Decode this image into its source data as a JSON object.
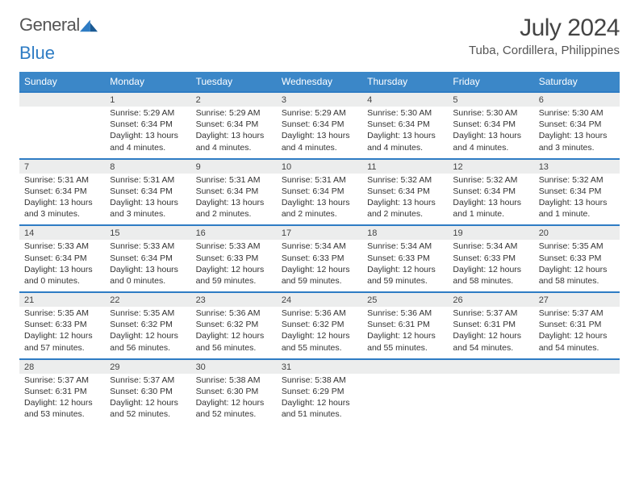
{
  "logo": {
    "part1": "General",
    "part2": "Blue"
  },
  "title": {
    "month": "July 2024",
    "location": "Tuba, Cordillera, Philippines"
  },
  "colors": {
    "header_bg": "#3b87c8",
    "dayrow_bg": "#eceded",
    "row_border": "#2e7cc4",
    "logo_blue": "#2e7cc4"
  },
  "weekdays": [
    "Sunday",
    "Monday",
    "Tuesday",
    "Wednesday",
    "Thursday",
    "Friday",
    "Saturday"
  ],
  "weeks": [
    [
      {
        "day": "",
        "lines": []
      },
      {
        "day": "1",
        "lines": [
          "Sunrise: 5:29 AM",
          "Sunset: 6:34 PM",
          "Daylight: 13 hours and 4 minutes."
        ]
      },
      {
        "day": "2",
        "lines": [
          "Sunrise: 5:29 AM",
          "Sunset: 6:34 PM",
          "Daylight: 13 hours and 4 minutes."
        ]
      },
      {
        "day": "3",
        "lines": [
          "Sunrise: 5:29 AM",
          "Sunset: 6:34 PM",
          "Daylight: 13 hours and 4 minutes."
        ]
      },
      {
        "day": "4",
        "lines": [
          "Sunrise: 5:30 AM",
          "Sunset: 6:34 PM",
          "Daylight: 13 hours and 4 minutes."
        ]
      },
      {
        "day": "5",
        "lines": [
          "Sunrise: 5:30 AM",
          "Sunset: 6:34 PM",
          "Daylight: 13 hours and 4 minutes."
        ]
      },
      {
        "day": "6",
        "lines": [
          "Sunrise: 5:30 AM",
          "Sunset: 6:34 PM",
          "Daylight: 13 hours and 3 minutes."
        ]
      }
    ],
    [
      {
        "day": "7",
        "lines": [
          "Sunrise: 5:31 AM",
          "Sunset: 6:34 PM",
          "Daylight: 13 hours and 3 minutes."
        ]
      },
      {
        "day": "8",
        "lines": [
          "Sunrise: 5:31 AM",
          "Sunset: 6:34 PM",
          "Daylight: 13 hours and 3 minutes."
        ]
      },
      {
        "day": "9",
        "lines": [
          "Sunrise: 5:31 AM",
          "Sunset: 6:34 PM",
          "Daylight: 13 hours and 2 minutes."
        ]
      },
      {
        "day": "10",
        "lines": [
          "Sunrise: 5:31 AM",
          "Sunset: 6:34 PM",
          "Daylight: 13 hours and 2 minutes."
        ]
      },
      {
        "day": "11",
        "lines": [
          "Sunrise: 5:32 AM",
          "Sunset: 6:34 PM",
          "Daylight: 13 hours and 2 minutes."
        ]
      },
      {
        "day": "12",
        "lines": [
          "Sunrise: 5:32 AM",
          "Sunset: 6:34 PM",
          "Daylight: 13 hours and 1 minute."
        ]
      },
      {
        "day": "13",
        "lines": [
          "Sunrise: 5:32 AM",
          "Sunset: 6:34 PM",
          "Daylight: 13 hours and 1 minute."
        ]
      }
    ],
    [
      {
        "day": "14",
        "lines": [
          "Sunrise: 5:33 AM",
          "Sunset: 6:34 PM",
          "Daylight: 13 hours and 0 minutes."
        ]
      },
      {
        "day": "15",
        "lines": [
          "Sunrise: 5:33 AM",
          "Sunset: 6:34 PM",
          "Daylight: 13 hours and 0 minutes."
        ]
      },
      {
        "day": "16",
        "lines": [
          "Sunrise: 5:33 AM",
          "Sunset: 6:33 PM",
          "Daylight: 12 hours and 59 minutes."
        ]
      },
      {
        "day": "17",
        "lines": [
          "Sunrise: 5:34 AM",
          "Sunset: 6:33 PM",
          "Daylight: 12 hours and 59 minutes."
        ]
      },
      {
        "day": "18",
        "lines": [
          "Sunrise: 5:34 AM",
          "Sunset: 6:33 PM",
          "Daylight: 12 hours and 59 minutes."
        ]
      },
      {
        "day": "19",
        "lines": [
          "Sunrise: 5:34 AM",
          "Sunset: 6:33 PM",
          "Daylight: 12 hours and 58 minutes."
        ]
      },
      {
        "day": "20",
        "lines": [
          "Sunrise: 5:35 AM",
          "Sunset: 6:33 PM",
          "Daylight: 12 hours and 58 minutes."
        ]
      }
    ],
    [
      {
        "day": "21",
        "lines": [
          "Sunrise: 5:35 AM",
          "Sunset: 6:33 PM",
          "Daylight: 12 hours and 57 minutes."
        ]
      },
      {
        "day": "22",
        "lines": [
          "Sunrise: 5:35 AM",
          "Sunset: 6:32 PM",
          "Daylight: 12 hours and 56 minutes."
        ]
      },
      {
        "day": "23",
        "lines": [
          "Sunrise: 5:36 AM",
          "Sunset: 6:32 PM",
          "Daylight: 12 hours and 56 minutes."
        ]
      },
      {
        "day": "24",
        "lines": [
          "Sunrise: 5:36 AM",
          "Sunset: 6:32 PM",
          "Daylight: 12 hours and 55 minutes."
        ]
      },
      {
        "day": "25",
        "lines": [
          "Sunrise: 5:36 AM",
          "Sunset: 6:31 PM",
          "Daylight: 12 hours and 55 minutes."
        ]
      },
      {
        "day": "26",
        "lines": [
          "Sunrise: 5:37 AM",
          "Sunset: 6:31 PM",
          "Daylight: 12 hours and 54 minutes."
        ]
      },
      {
        "day": "27",
        "lines": [
          "Sunrise: 5:37 AM",
          "Sunset: 6:31 PM",
          "Daylight: 12 hours and 54 minutes."
        ]
      }
    ],
    [
      {
        "day": "28",
        "lines": [
          "Sunrise: 5:37 AM",
          "Sunset: 6:31 PM",
          "Daylight: 12 hours and 53 minutes."
        ]
      },
      {
        "day": "29",
        "lines": [
          "Sunrise: 5:37 AM",
          "Sunset: 6:30 PM",
          "Daylight: 12 hours and 52 minutes."
        ]
      },
      {
        "day": "30",
        "lines": [
          "Sunrise: 5:38 AM",
          "Sunset: 6:30 PM",
          "Daylight: 12 hours and 52 minutes."
        ]
      },
      {
        "day": "31",
        "lines": [
          "Sunrise: 5:38 AM",
          "Sunset: 6:29 PM",
          "Daylight: 12 hours and 51 minutes."
        ]
      },
      {
        "day": "",
        "lines": []
      },
      {
        "day": "",
        "lines": []
      },
      {
        "day": "",
        "lines": []
      }
    ]
  ]
}
